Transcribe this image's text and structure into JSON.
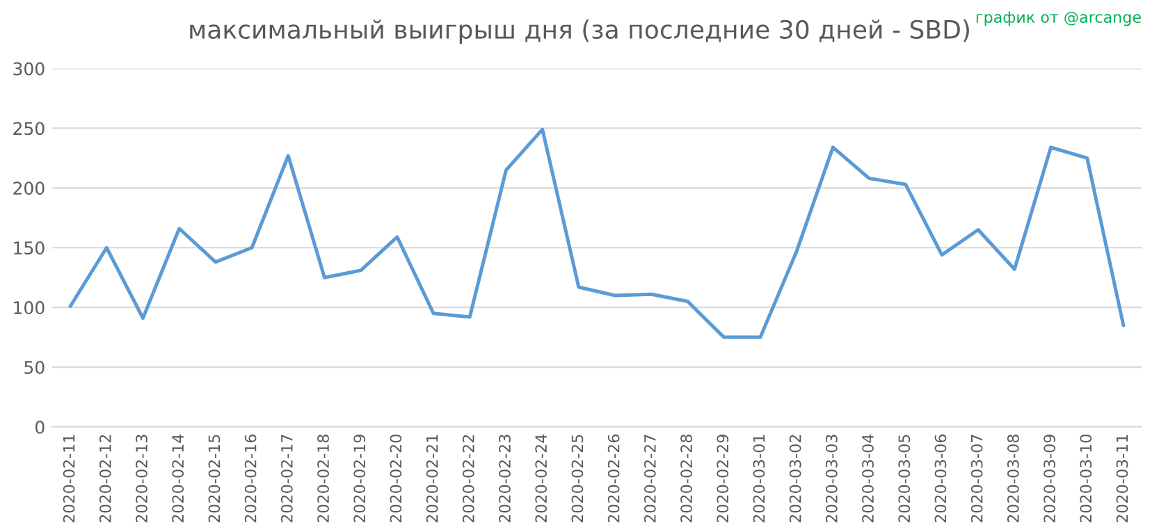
{
  "chart_data": {
    "type": "line",
    "title": "максимальный выигрыш дня (за последние 30 дней - SBD)",
    "annotations": [
      "график от @arcange"
    ],
    "categories": [
      "2020-02-11",
      "2020-02-12",
      "2020-02-13",
      "2020-02-14",
      "2020-02-15",
      "2020-02-16",
      "2020-02-17",
      "2020-02-18",
      "2020-02-19",
      "2020-02-20",
      "2020-02-21",
      "2020-02-22",
      "2020-02-23",
      "2020-02-24",
      "2020-02-25",
      "2020-02-26",
      "2020-02-27",
      "2020-02-28",
      "2020-02-29",
      "2020-03-01",
      "2020-03-02",
      "2020-03-03",
      "2020-03-04",
      "2020-03-05",
      "2020-03-06",
      "2020-03-07",
      "2020-03-08",
      "2020-03-09",
      "2020-03-10",
      "2020-03-11"
    ],
    "series": [
      {
        "color": "#5b9bd5",
        "values": [
          101,
          150,
          91,
          166,
          138,
          150,
          227,
          125,
          131,
          159,
          95,
          92,
          215,
          249,
          117,
          110,
          111,
          105,
          75,
          75,
          147,
          234,
          208,
          203,
          144,
          165,
          132,
          234,
          225,
          85
        ]
      }
    ],
    "ylim": [
      0,
      300
    ],
    "yticks": [
      0,
      50,
      100,
      150,
      200,
      250,
      300
    ],
    "grid": "y",
    "legend": false,
    "marker": "none",
    "line_style": "solid"
  }
}
